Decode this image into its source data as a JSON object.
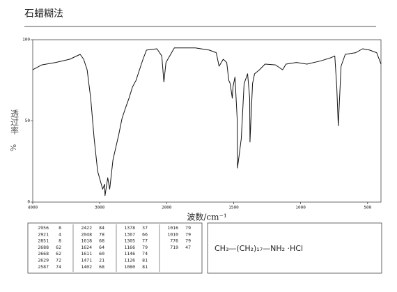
{
  "chart_data": {
    "type": "line",
    "title": "石蜡糊法",
    "x_label": "波数/cm⁻¹",
    "y_label": "透过率",
    "y_unit": "%",
    "xlim": [
      4000,
      400
    ],
    "xticks": [
      4000,
      3000,
      2000,
      1500,
      1000,
      500
    ],
    "ylim": [
      0,
      100
    ],
    "yticks": [
      0,
      50,
      100
    ],
    "series": [
      {
        "color": "#111111",
        "x": [
          4000,
          3865,
          3656,
          3448,
          3292,
          3240,
          3188,
          3135,
          3083,
          3031,
          2956,
          2927,
          2921,
          2880,
          2851,
          2802,
          2719,
          2667,
          2615,
          2563,
          2510,
          2458,
          2406,
          2354,
          2302,
          2146,
          2073,
          2042,
          2010,
          1943,
          1786,
          1682,
          1630,
          1609,
          1599,
          1578,
          1552,
          1536,
          1526,
          1510,
          1505,
          1490,
          1474,
          1471,
          1443,
          1422,
          1396,
          1380,
          1378,
          1359,
          1344,
          1307,
          1266,
          1188,
          1135,
          1109,
          1031,
          953,
          849,
          771,
          745,
          730,
          719,
          698,
          667,
          589,
          537,
          485,
          432,
          400
        ],
        "values": [
          81.5,
          84.5,
          86,
          88,
          91,
          88,
          81.5,
          64,
          39,
          19,
          8,
          11,
          4,
          15,
          8,
          26,
          41,
          51.5,
          58,
          64,
          71,
          75,
          81.5,
          88,
          93.6,
          94.4,
          90,
          74,
          86,
          95,
          95,
          93.6,
          92,
          83.7,
          85,
          88,
          86,
          75,
          73,
          64,
          71,
          77,
          51.5,
          21,
          39,
          73,
          79,
          64,
          37,
          73,
          79,
          81.5,
          85,
          84.5,
          81.5,
          85,
          86,
          85,
          87,
          89,
          90,
          71,
          47,
          83.7,
          91,
          92,
          94.4,
          93.6,
          92,
          85
        ]
      }
    ],
    "peak_table": [
      [
        [
          "2956",
          "8"
        ],
        [
          "2921",
          "4"
        ],
        [
          "2851",
          "8"
        ],
        [
          "2688",
          "62"
        ],
        [
          "2668",
          "62"
        ],
        [
          "2629",
          "72"
        ],
        [
          "2587",
          "74"
        ]
      ],
      [
        [
          "2422",
          "84"
        ],
        [
          "2048",
          "78"
        ],
        [
          "1618",
          "68"
        ],
        [
          "1624",
          "64"
        ],
        [
          "1611",
          "60"
        ],
        [
          "1471",
          "21"
        ],
        [
          "1402",
          "68"
        ]
      ],
      [
        [
          "1378",
          "37"
        ],
        [
          "1367",
          "66"
        ],
        [
          "1305",
          "77"
        ],
        [
          "1166",
          "79"
        ],
        [
          "1146",
          "74"
        ],
        [
          "1126",
          "81"
        ],
        [
          "1080",
          "81"
        ]
      ],
      [
        [
          "1016",
          "79"
        ],
        [
          "1010",
          "79"
        ],
        [
          "776",
          "79"
        ],
        [
          "719",
          "47"
        ]
      ]
    ],
    "formula": "CH₃—(CH₂)₁₇—NH₂ ·HCl"
  }
}
